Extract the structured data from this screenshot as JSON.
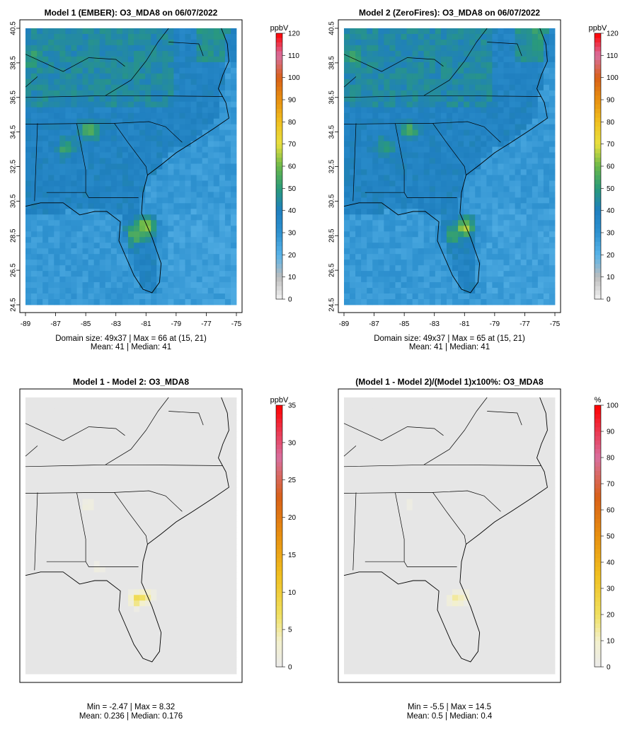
{
  "chart_data": [
    {
      "type": "heatmap",
      "title": "Model 1 (EMBER): O3_MDA8 on 06/07/2022",
      "x_ticks": [
        "-89",
        "-87",
        "-85",
        "-83",
        "-81",
        "-79",
        "-77",
        "-75"
      ],
      "y_ticks": [
        "24.5",
        "26.5",
        "28.5",
        "30.5",
        "32.5",
        "34.5",
        "36.5",
        "38.5",
        "40.5"
      ],
      "xlim": [
        -89,
        -75
      ],
      "ylim": [
        24.5,
        40.5
      ],
      "grid_size": "49x37",
      "colorbar": {
        "unit": "ppbV",
        "ticks": [
          "0",
          "10",
          "20",
          "30",
          "40",
          "50",
          "60",
          "70",
          "80",
          "90",
          "100",
          "110",
          "120"
        ],
        "range": [
          0,
          120
        ]
      },
      "stats_line1": "Domain size: 49x37 | Max = 66 at (15, 21)",
      "stats_line2": "Mean: 41  |  Median: 41",
      "max": 66,
      "mean": 41,
      "median": 41,
      "hotspots": [
        {
          "lon": -81.0,
          "lat": 29.0,
          "value": 66
        },
        {
          "lon": -84.7,
          "lat": 34.6,
          "value": 58
        },
        {
          "lon": -86.3,
          "lat": 33.6,
          "value": 53
        },
        {
          "lon": -81.8,
          "lat": 28.5,
          "value": 55
        },
        {
          "lon": -88.5,
          "lat": 38.8,
          "value": 52
        },
        {
          "lon": -76.3,
          "lat": 40.2,
          "value": 50
        }
      ]
    },
    {
      "type": "heatmap",
      "title": "Model 2 (ZeroFires): O3_MDA8 on 06/07/2022",
      "x_ticks": [
        "-89",
        "-87",
        "-85",
        "-83",
        "-81",
        "-79",
        "-77",
        "-75"
      ],
      "y_ticks": [
        "24.5",
        "26.5",
        "28.5",
        "30.5",
        "32.5",
        "34.5",
        "36.5",
        "38.5",
        "40.5"
      ],
      "xlim": [
        -89,
        -75
      ],
      "ylim": [
        24.5,
        40.5
      ],
      "grid_size": "49x37",
      "colorbar": {
        "unit": "ppbV",
        "ticks": [
          "0",
          "10",
          "20",
          "30",
          "40",
          "50",
          "60",
          "70",
          "80",
          "90",
          "100",
          "110",
          "120"
        ],
        "range": [
          0,
          120
        ]
      },
      "stats_line1": "Domain size: 49x37 | Max = 65 at (15, 21)",
      "stats_line2": "Mean: 41  |  Median: 41",
      "max": 65,
      "mean": 41,
      "median": 41,
      "hotspots": [
        {
          "lon": -81.0,
          "lat": 29.0,
          "value": 65
        },
        {
          "lon": -84.7,
          "lat": 34.6,
          "value": 56
        },
        {
          "lon": -86.3,
          "lat": 33.6,
          "value": 52
        },
        {
          "lon": -81.8,
          "lat": 28.5,
          "value": 53
        },
        {
          "lon": -88.5,
          "lat": 38.8,
          "value": 51
        },
        {
          "lon": -76.3,
          "lat": 40.2,
          "value": 50
        }
      ]
    },
    {
      "type": "heatmap",
      "title": "Model 1 - Model 2: O3_MDA8",
      "xlim": [
        -89,
        -75
      ],
      "ylim": [
        24.5,
        40.5
      ],
      "colorbar": {
        "unit": "ppbV",
        "ticks": [
          "0",
          "5",
          "10",
          "15",
          "20",
          "25",
          "30",
          "35"
        ],
        "range": [
          0,
          35
        ]
      },
      "stats_line1": "Min = -2.47 | Max = 8.32",
      "stats_line2": "Mean: 0.236  |  Median: 0.176",
      "min": -2.47,
      "max": 8.32,
      "mean": 0.236,
      "median": 0.176,
      "hotspots": [
        {
          "lon": -81.6,
          "lat": 28.8,
          "value": 8.32
        },
        {
          "lon": -81.0,
          "lat": 29.0,
          "value": 5.0
        },
        {
          "lon": -84.8,
          "lat": 34.3,
          "value": 2.0
        },
        {
          "lon": -84.2,
          "lat": 30.6,
          "value": 1.5
        }
      ]
    },
    {
      "type": "heatmap",
      "title": "(Model 1 - Model 2)/(Model 1)x100%: O3_MDA8",
      "xlim": [
        -89,
        -75
      ],
      "ylim": [
        24.5,
        40.5
      ],
      "colorbar": {
        "unit": "%",
        "ticks": [
          "0",
          "10",
          "20",
          "30",
          "40",
          "50",
          "60",
          "70",
          "80",
          "90",
          "100"
        ],
        "range": [
          0,
          100
        ]
      },
      "stats_line1": "Min = -5.5 | Max = 14.5",
      "stats_line2": "Mean: 0.5  |  Median: 0.4",
      "min": -5.5,
      "max": 14.5,
      "mean": 0.5,
      "median": 0.4,
      "hotspots": [
        {
          "lon": -81.6,
          "lat": 28.8,
          "value": 14.5
        },
        {
          "lon": -81.0,
          "lat": 29.0,
          "value": 8.0
        },
        {
          "lon": -84.8,
          "lat": 34.3,
          "value": 3.0
        }
      ]
    }
  ]
}
